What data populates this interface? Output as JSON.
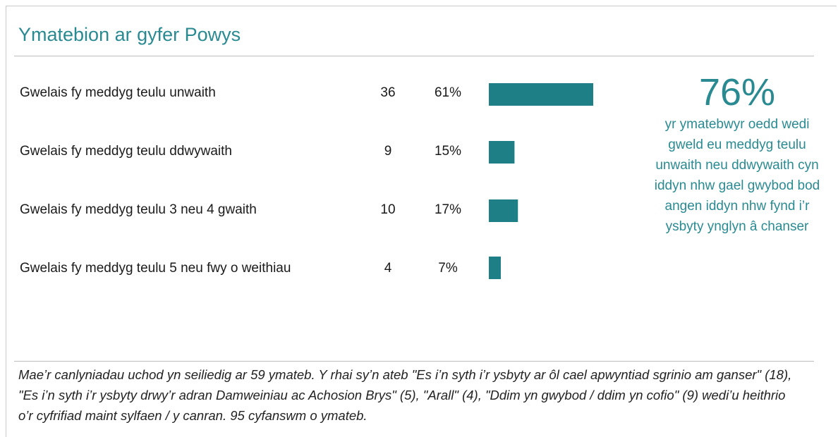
{
  "title": "Ymatebion ar gyfer Powys",
  "chart_data": {
    "type": "bar",
    "orientation": "horizontal",
    "categories": [
      "Gwelais fy meddyg teulu unwaith",
      "Gwelais fy meddyg teulu ddwywaith",
      "Gwelais fy meddyg teulu 3 neu 4 gwaith",
      "Gwelais fy meddyg teulu 5 neu fwy o weithiau"
    ],
    "counts": [
      "36",
      "9",
      "10",
      "4"
    ],
    "percent_labels": [
      "61%",
      "15%",
      "17%",
      "7%"
    ],
    "values": [
      61,
      15,
      17,
      7
    ],
    "bar_color": "#1f7f87"
  },
  "callout": {
    "value": "76%",
    "text": "yr ymatebwyr oedd wedi gweld eu meddyg teulu unwaith neu ddwywaith cyn iddyn nhw gael gwybod bod angen iddyn nhw fynd i’r ysbyty ynglyn â chanser"
  },
  "footnote": "Mae’r canlyniadau uchod yn seiliedig ar 59 ymateb. Y rhai sy’n ateb \"Es i’n syth i’r ysbyty ar ôl cael apwyntiad sgrinio am ganser\" (18), \"Es i’n syth i’r ysbyty drwy’r adran Damweiniau ac Achosion Brys\" (5), \"Arall\" (4), \"Ddim yn gwybod / ddim yn cofio\" (9) wedi’u heithrio o’r cyfrifiad maint sylfaen / y canran. 95 cyfanswm o ymateb."
}
